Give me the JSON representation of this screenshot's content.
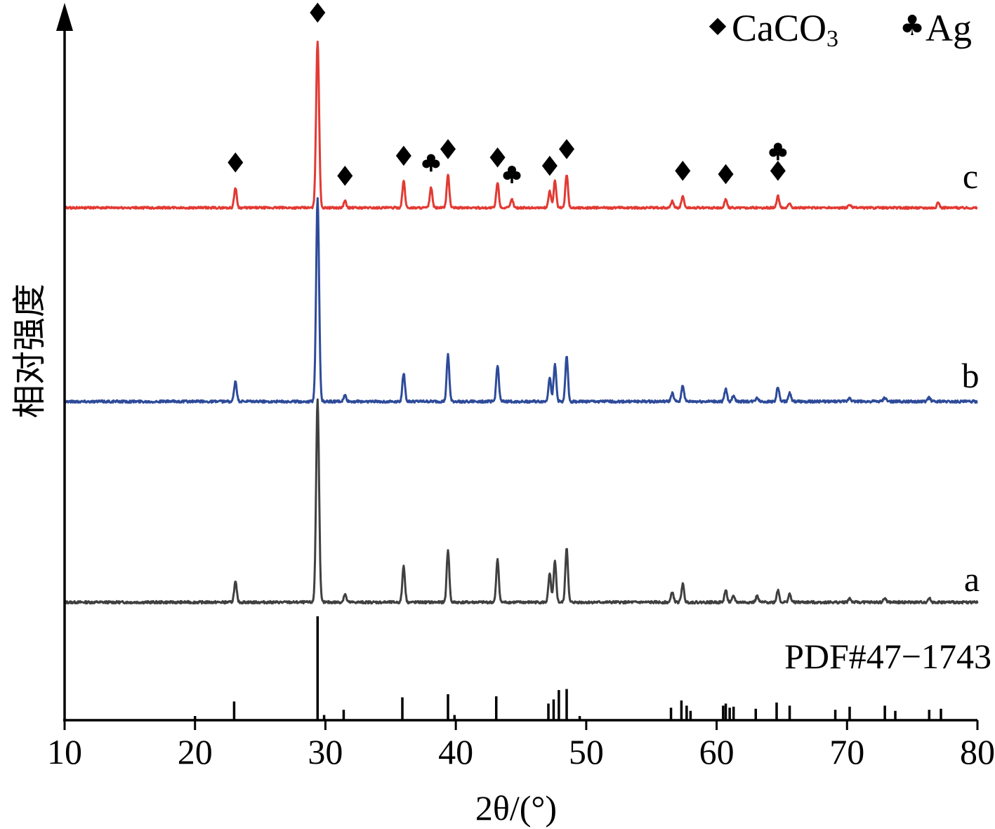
{
  "chart_data": {
    "type": "line",
    "xlabel": "2θ/(°)",
    "ylabel": "相对强度",
    "xlim": [
      10,
      80
    ],
    "x_ticks": [
      "10",
      "20",
      "30",
      "40",
      "50",
      "60",
      "70",
      "80"
    ],
    "grid": false,
    "legend": [
      {
        "symbol": "◆",
        "label_main": "CaCO",
        "label_sub": "3"
      },
      {
        "symbol": "♣",
        "label_main": "Ag",
        "label_sub": ""
      }
    ],
    "legend_position": "top-right",
    "series": [
      {
        "name": "a",
        "color": "#404040",
        "peaks": [
          [
            23.1,
            0.1
          ],
          [
            29.4,
            1.0
          ],
          [
            31.5,
            0.04
          ],
          [
            36.0,
            0.18
          ],
          [
            39.4,
            0.26
          ],
          [
            43.2,
            0.21
          ],
          [
            47.2,
            0.14
          ],
          [
            47.6,
            0.2
          ],
          [
            48.5,
            0.27
          ],
          [
            56.6,
            0.05
          ],
          [
            57.4,
            0.09
          ],
          [
            60.7,
            0.06
          ],
          [
            61.3,
            0.03
          ],
          [
            63.1,
            0.03
          ],
          [
            64.7,
            0.06
          ],
          [
            65.6,
            0.04
          ],
          [
            70.2,
            0.02
          ],
          [
            72.9,
            0.02
          ],
          [
            76.3,
            0.02
          ]
        ]
      },
      {
        "name": "b",
        "color": "#2e4b9a",
        "peaks": [
          [
            23.1,
            0.1
          ],
          [
            29.4,
            1.0
          ],
          [
            31.5,
            0.03
          ],
          [
            36.0,
            0.14
          ],
          [
            39.4,
            0.23
          ],
          [
            43.2,
            0.18
          ],
          [
            47.2,
            0.12
          ],
          [
            47.6,
            0.18
          ],
          [
            48.5,
            0.22
          ],
          [
            56.6,
            0.04
          ],
          [
            57.4,
            0.08
          ],
          [
            60.7,
            0.06
          ],
          [
            61.3,
            0.03
          ],
          [
            63.1,
            0.02
          ],
          [
            64.7,
            0.07
          ],
          [
            65.6,
            0.04
          ],
          [
            70.2,
            0.02
          ],
          [
            72.9,
            0.02
          ],
          [
            76.3,
            0.02
          ]
        ]
      },
      {
        "name": "c",
        "color": "#e23a33",
        "peaks": [
          [
            23.1,
            0.12
          ],
          [
            29.4,
            1.0
          ],
          [
            31.5,
            0.04
          ],
          [
            36.0,
            0.16
          ],
          [
            38.1,
            0.12
          ],
          [
            39.4,
            0.2
          ],
          [
            43.2,
            0.15
          ],
          [
            44.3,
            0.05
          ],
          [
            47.2,
            0.1
          ],
          [
            47.6,
            0.16
          ],
          [
            48.5,
            0.2
          ],
          [
            56.6,
            0.04
          ],
          [
            57.4,
            0.07
          ],
          [
            60.7,
            0.05
          ],
          [
            64.7,
            0.07
          ],
          [
            65.6,
            0.03
          ],
          [
            70.2,
            0.02
          ],
          [
            77.0,
            0.03
          ]
        ],
        "markers": [
          {
            "x": 23.1,
            "kind": "CaCO3"
          },
          {
            "x": 29.4,
            "kind": "CaCO3"
          },
          {
            "x": 31.5,
            "kind": "CaCO3"
          },
          {
            "x": 36.0,
            "kind": "CaCO3"
          },
          {
            "x": 38.1,
            "kind": "Ag"
          },
          {
            "x": 39.4,
            "kind": "CaCO3"
          },
          {
            "x": 43.2,
            "kind": "CaCO3"
          },
          {
            "x": 44.3,
            "kind": "Ag"
          },
          {
            "x": 47.2,
            "kind": "CaCO3"
          },
          {
            "x": 48.5,
            "kind": "CaCO3"
          },
          {
            "x": 57.4,
            "kind": "CaCO3"
          },
          {
            "x": 60.7,
            "kind": "CaCO3"
          },
          {
            "x": 64.7,
            "kind": "CaCO3"
          },
          {
            "x": 64.7,
            "kind": "Ag"
          }
        ]
      }
    ],
    "reference": {
      "label": "PDF#47−1743",
      "color": "#000000",
      "lines": [
        [
          20.0,
          0.04
        ],
        [
          23.0,
          0.18
        ],
        [
          29.4,
          1.0
        ],
        [
          29.9,
          0.05
        ],
        [
          31.4,
          0.1
        ],
        [
          35.9,
          0.22
        ],
        [
          39.4,
          0.25
        ],
        [
          39.9,
          0.05
        ],
        [
          43.1,
          0.23
        ],
        [
          47.1,
          0.16
        ],
        [
          47.5,
          0.2
        ],
        [
          47.9,
          0.29
        ],
        [
          48.5,
          0.3
        ],
        [
          49.5,
          0.04
        ],
        [
          56.5,
          0.12
        ],
        [
          57.3,
          0.19
        ],
        [
          57.7,
          0.14
        ],
        [
          58.0,
          0.09
        ],
        [
          60.5,
          0.14
        ],
        [
          60.7,
          0.16
        ],
        [
          61.0,
          0.12
        ],
        [
          61.3,
          0.13
        ],
        [
          63.0,
          0.11
        ],
        [
          64.6,
          0.17
        ],
        [
          65.6,
          0.14
        ],
        [
          69.1,
          0.1
        ],
        [
          70.2,
          0.13
        ],
        [
          72.9,
          0.14
        ],
        [
          73.7,
          0.09
        ],
        [
          76.3,
          0.1
        ],
        [
          77.2,
          0.11
        ]
      ]
    }
  }
}
